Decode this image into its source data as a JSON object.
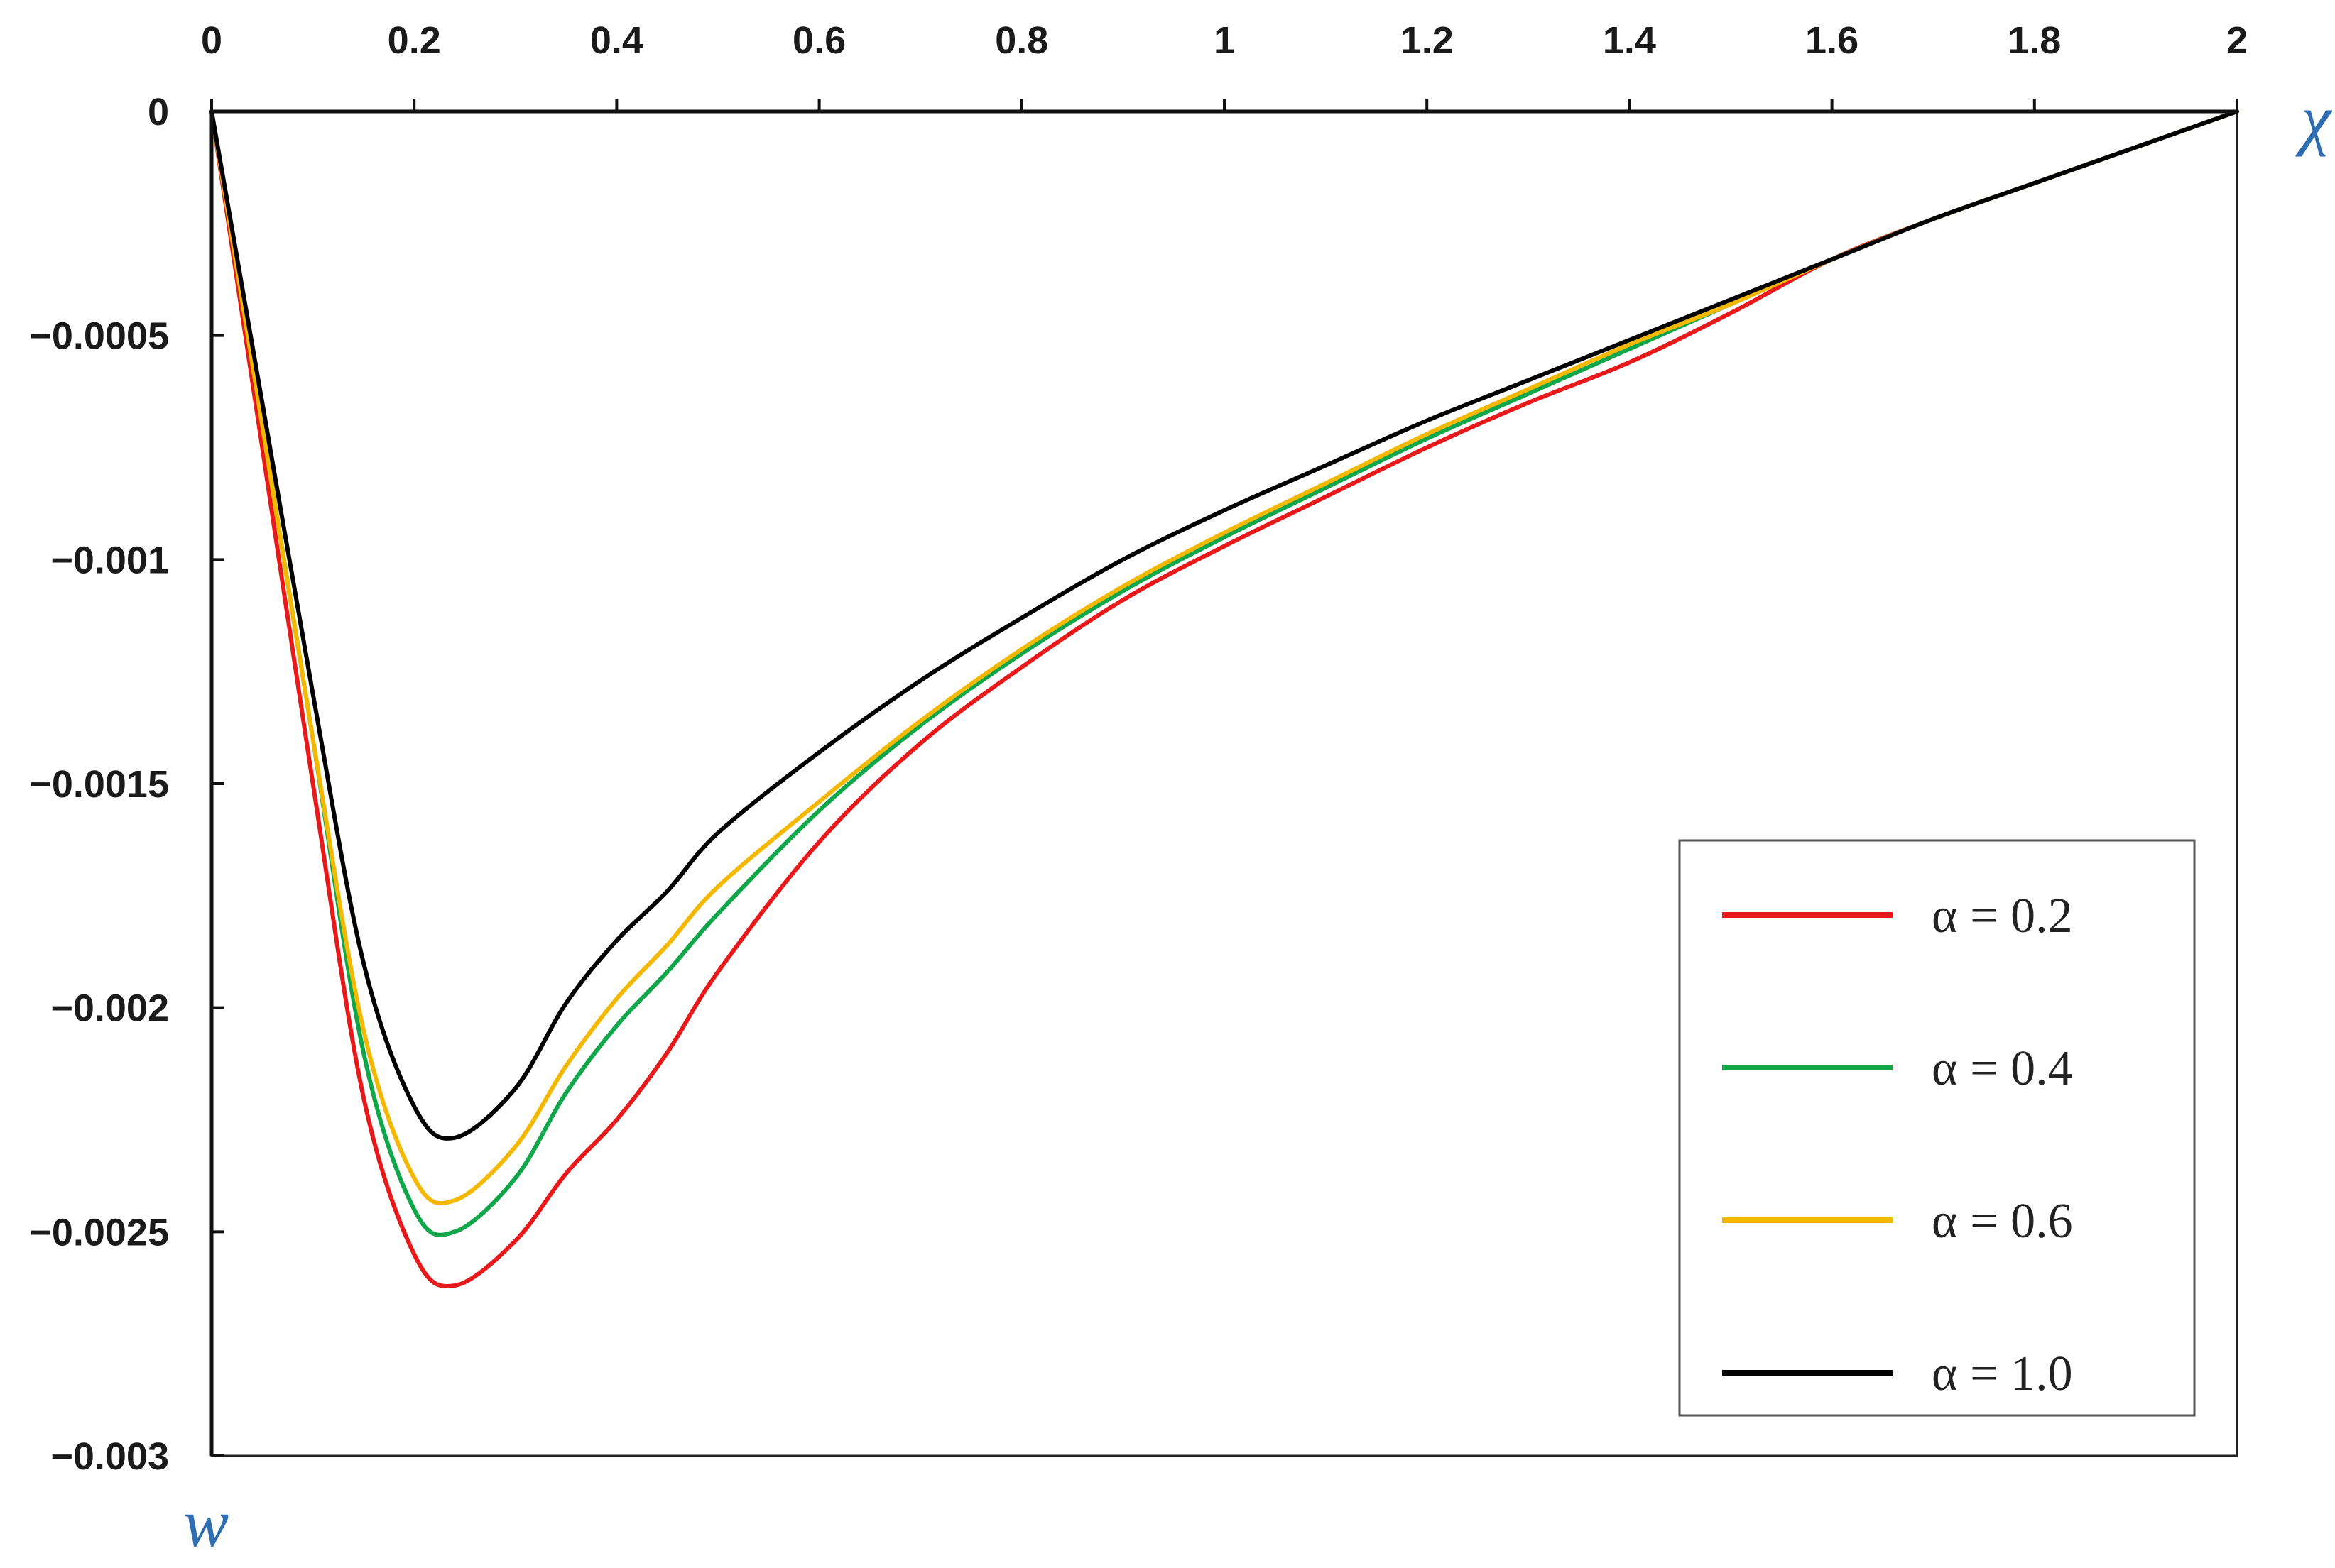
{
  "chart_data": {
    "type": "line",
    "xlabel": "χ",
    "ylabel": "w",
    "xlim": [
      0,
      2
    ],
    "ylim": [
      -0.003,
      0
    ],
    "x_axis_position": "top",
    "x_ticks": [
      "0",
      "0.2",
      "0.4",
      "0.6",
      "0.8",
      "1",
      "1.2",
      "1.4",
      "1.6",
      "1.8",
      "2"
    ],
    "y_ticks": [
      "0",
      "−0.0005",
      "−0.001",
      "−0.0015",
      "−0.002",
      "−0.0025",
      "−0.003"
    ],
    "grid": false,
    "legend_position": "bottom-right",
    "x": [
      0,
      0.05,
      0.1,
      0.15,
      0.2,
      0.24,
      0.3,
      0.35,
      0.4,
      0.45,
      0.5,
      0.6,
      0.7,
      0.8,
      0.9,
      1.0,
      1.1,
      1.2,
      1.3,
      1.4,
      1.5,
      1.6,
      1.7,
      1.8,
      1.9,
      2.0
    ],
    "series": [
      {
        "name": "α = 0.2",
        "color": "#e8191b",
        "values": [
          0,
          -0.00075,
          -0.0015,
          -0.0022,
          -0.00255,
          -0.00262,
          -0.00252,
          -0.00237,
          -0.00225,
          -0.0021,
          -0.00192,
          -0.00163,
          -0.00141,
          -0.00124,
          -0.00109,
          -0.00097,
          -0.00086,
          -0.00075,
          -0.00065,
          -0.00056,
          -0.00045,
          -0.00033,
          -0.00024,
          -0.00016,
          -8e-05,
          0
        ]
      },
      {
        "name": "α = 0.4",
        "color": "#10a64a",
        "values": [
          0,
          -0.0007,
          -0.0014,
          -0.0021,
          -0.00245,
          -0.0025,
          -0.00238,
          -0.00219,
          -0.00204,
          -0.00192,
          -0.00179,
          -0.00156,
          -0.00137,
          -0.00121,
          -0.00107,
          -0.00095,
          -0.00084,
          -0.00073,
          -0.00063,
          -0.00053,
          -0.00043,
          -0.00033,
          -0.00024,
          -0.00016,
          -8e-05,
          0
        ]
      },
      {
        "name": "α = 0.6",
        "color": "#f5b800",
        "values": [
          0,
          -0.0007,
          -0.0014,
          -0.00205,
          -0.00238,
          -0.00243,
          -0.00231,
          -0.00213,
          -0.00198,
          -0.00186,
          -0.00173,
          -0.00154,
          -0.00136,
          -0.0012,
          -0.00106,
          -0.00094,
          -0.00083,
          -0.00072,
          -0.00062,
          -0.00052,
          -0.00043,
          -0.00033,
          -0.00024,
          -0.00016,
          -8e-05,
          0
        ]
      },
      {
        "name": "α = 1.0",
        "color": "#000000",
        "values": [
          0,
          -0.00065,
          -0.0013,
          -0.0019,
          -0.00222,
          -0.00229,
          -0.00218,
          -0.00199,
          -0.00185,
          -0.00174,
          -0.00161,
          -0.00143,
          -0.00127,
          -0.00113,
          -0.001,
          -0.00089,
          -0.00079,
          -0.00069,
          -0.0006,
          -0.00051,
          -0.00042,
          -0.00033,
          -0.00024,
          -0.00016,
          -8e-05,
          0
        ]
      }
    ]
  }
}
